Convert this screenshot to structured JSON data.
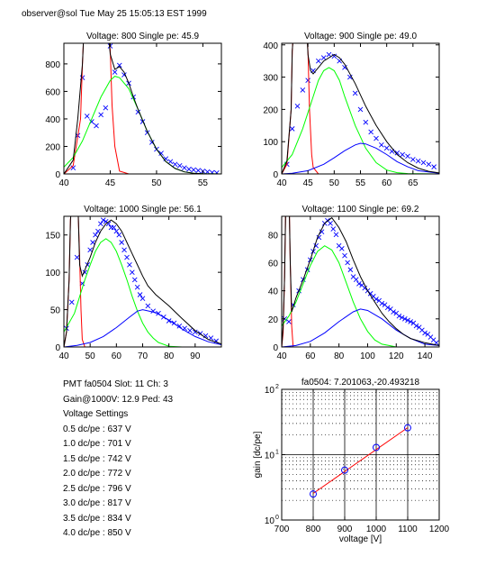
{
  "header": {
    "text": "observer@sol  Tue May 25 15:05:13 EST 1999"
  },
  "info": {
    "pmt_line": "PMT fa0504 Slot: 11 Ch: 3",
    "gain_line": "Gain@1000V: 12.9 Ped: 43",
    "settings_title": "Voltage Settings",
    "settings": [
      "0.5 dc/pe : 637 V",
      "1.0 dc/pe : 701 V",
      "1.5 dc/pe : 742 V",
      "2.0 dc/pe : 772 V",
      "2.5 dc/pe : 796 V",
      "3.0 dc/pe : 817 V",
      "3.5 dc/pe : 834 V",
      "4.0 dc/pe : 850 V"
    ]
  },
  "colors": {
    "data": "#0000ff",
    "red": "#ff0000",
    "green": "#00ff00",
    "blue": "#0000ff",
    "black": "#000000"
  },
  "chart_data": [
    {
      "type": "line",
      "title": "Voltage: 800 Single pe: 45.9",
      "xlim": [
        40,
        57
      ],
      "ylim": [
        0,
        950
      ],
      "xticks": [
        40,
        45,
        50,
        55
      ],
      "yticks": [
        0,
        200,
        400,
        600,
        800
      ],
      "series": [
        {
          "role": "data",
          "marker": "x",
          "x": [
            41,
            41.5,
            42,
            42.5,
            43,
            43.5,
            44,
            44.5,
            45,
            45.5,
            46,
            46.5,
            47,
            47.5,
            48,
            48.5,
            49,
            49.5,
            50,
            50.5,
            51,
            51.5,
            52,
            52.5,
            53,
            53.5,
            54,
            54.5,
            55,
            55.5,
            56,
            56.5
          ],
          "y": [
            45,
            280,
            700,
            420,
            380,
            350,
            430,
            480,
            930,
            740,
            790,
            720,
            660,
            560,
            450,
            380,
            300,
            230,
            180,
            150,
            110,
            90,
            70,
            60,
            45,
            35,
            30,
            25,
            20,
            15,
            10,
            8
          ]
        },
        {
          "role": "pedestal",
          "color": "red",
          "x": [
            40,
            41,
            41.8,
            42,
            42.1,
            42.2,
            44.8,
            44.9,
            45,
            45.2,
            45.5,
            46,
            47
          ],
          "y": [
            0,
            60,
            400,
            800,
            950,
            950,
            950,
            950,
            900,
            500,
            200,
            20,
            0
          ]
        },
        {
          "role": "fit-1pe",
          "color": "green",
          "x": [
            40,
            41,
            42,
            43,
            44,
            45,
            45.5,
            46,
            47,
            48,
            49,
            50,
            51,
            52,
            53,
            54,
            55,
            57
          ],
          "y": [
            50,
            120,
            240,
            400,
            560,
            680,
            710,
            700,
            620,
            470,
            310,
            180,
            90,
            40,
            15,
            5,
            2,
            0
          ]
        },
        {
          "role": "fit-2pe",
          "color": "blue",
          "x": [
            40,
            57
          ],
          "y": [
            0,
            0
          ]
        },
        {
          "role": "fit-total",
          "color": "black",
          "x": [
            40,
            41,
            41.5,
            42,
            42.1,
            42.2,
            44.8,
            44.9,
            45,
            45.5,
            46,
            46.5,
            47,
            47.5,
            48,
            49,
            50,
            51,
            52,
            53,
            54,
            55,
            57
          ],
          "y": [
            0,
            100,
            400,
            800,
            950,
            950,
            950,
            950,
            870,
            760,
            780,
            740,
            660,
            560,
            470,
            310,
            180,
            90,
            40,
            15,
            5,
            2,
            0
          ]
        }
      ]
    },
    {
      "type": "line",
      "title": "Voltage: 900 Single pe: 49.0",
      "xlim": [
        40,
        70
      ],
      "ylim": [
        0,
        405
      ],
      "xticks": [
        40,
        45,
        50,
        55,
        60,
        65
      ],
      "yticks": [
        0,
        100,
        200,
        300,
        400
      ],
      "series": [
        {
          "role": "data",
          "marker": "x",
          "x": [
            41,
            42,
            43,
            44,
            45,
            46,
            47,
            48,
            49,
            50,
            51,
            52,
            53,
            54,
            55,
            56,
            57,
            58,
            59,
            60,
            61,
            62,
            63,
            64,
            65,
            66,
            67,
            68,
            69
          ],
          "y": [
            30,
            140,
            210,
            260,
            290,
            320,
            350,
            360,
            370,
            365,
            350,
            330,
            300,
            250,
            200,
            160,
            130,
            110,
            90,
            80,
            70,
            65,
            60,
            55,
            45,
            40,
            35,
            30,
            22
          ]
        },
        {
          "role": "pedestal",
          "color": "red",
          "x": [
            40,
            41,
            41.8,
            42,
            42.1,
            44.8,
            44.9,
            45,
            45.3,
            45.7,
            46,
            47
          ],
          "y": [
            0,
            30,
            200,
            380,
            405,
            405,
            405,
            380,
            200,
            60,
            20,
            0
          ]
        },
        {
          "role": "fit-1pe",
          "color": "green",
          "x": [
            40,
            42,
            44,
            46,
            47,
            48,
            49,
            50,
            51,
            52,
            54,
            56,
            58,
            60,
            62,
            64,
            70
          ],
          "y": [
            20,
            60,
            140,
            240,
            290,
            320,
            330,
            320,
            290,
            240,
            150,
            80,
            35,
            12,
            4,
            1,
            0
          ]
        },
        {
          "role": "fit-2pe",
          "color": "blue",
          "x": [
            40,
            42,
            45,
            48,
            50,
            52,
            54,
            55,
            56,
            58,
            60,
            62,
            64,
            66,
            70
          ],
          "y": [
            0,
            2,
            10,
            30,
            50,
            72,
            90,
            95,
            93,
            80,
            60,
            38,
            22,
            10,
            2
          ]
        },
        {
          "role": "fit-total",
          "color": "black",
          "x": [
            40,
            41,
            41.8,
            42,
            42.1,
            44.8,
            44.9,
            45,
            45.5,
            46,
            48,
            50,
            51,
            52,
            54,
            56,
            58,
            60,
            62,
            64,
            66,
            68,
            70
          ],
          "y": [
            0,
            40,
            200,
            380,
            405,
            405,
            405,
            370,
            320,
            310,
            350,
            370,
            360,
            340,
            280,
            210,
            150,
            100,
            60,
            35,
            18,
            8,
            3
          ]
        }
      ]
    },
    {
      "type": "line",
      "title": "Voltage: 1000 Single pe: 56.1",
      "xlim": [
        40,
        100
      ],
      "ylim": [
        0,
        175
      ],
      "xticks": [
        40,
        50,
        60,
        70,
        80,
        90
      ],
      "yticks": [
        0,
        50,
        100,
        150
      ],
      "series": [
        {
          "role": "data",
          "marker": "x",
          "x": [
            41,
            43,
            45,
            47,
            48,
            49,
            50,
            51,
            52,
            53,
            54,
            55,
            56,
            57,
            58,
            59,
            60,
            61,
            62,
            63,
            64,
            65,
            66,
            67,
            68,
            69,
            70,
            72,
            74,
            76,
            78,
            80,
            82,
            84,
            86,
            88,
            90,
            92,
            94,
            96,
            98
          ],
          "y": [
            25,
            60,
            120,
            85,
            100,
            110,
            130,
            140,
            150,
            155,
            165,
            170,
            168,
            165,
            160,
            160,
            155,
            150,
            140,
            130,
            120,
            110,
            100,
            90,
            80,
            70,
            65,
            55,
            48,
            45,
            40,
            35,
            32,
            28,
            25,
            22,
            20,
            18,
            15,
            12,
            8
          ]
        },
        {
          "role": "pedestal",
          "color": "red",
          "x": [
            40,
            41,
            42,
            42.5,
            42.6,
            45.4,
            45.5,
            46,
            46.5,
            47,
            48
          ],
          "y": [
            0,
            20,
            90,
            170,
            175,
            175,
            175,
            120,
            50,
            10,
            0
          ]
        },
        {
          "role": "fit-1pe",
          "color": "green",
          "x": [
            40,
            44,
            48,
            50,
            52,
            54,
            56,
            58,
            60,
            62,
            64,
            66,
            68,
            70,
            72,
            74,
            76,
            80,
            85,
            100
          ],
          "y": [
            20,
            45,
            90,
            110,
            128,
            140,
            145,
            140,
            128,
            110,
            90,
            68,
            48,
            32,
            20,
            12,
            6,
            1,
            0,
            0
          ]
        },
        {
          "role": "fit-2pe",
          "color": "blue",
          "x": [
            40,
            45,
            50,
            55,
            60,
            65,
            68,
            70,
            75,
            80,
            85,
            90,
            95,
            100
          ],
          "y": [
            0,
            2,
            6,
            14,
            26,
            40,
            48,
            50,
            46,
            36,
            24,
            14,
            7,
            3
          ]
        },
        {
          "role": "fit-total",
          "color": "black",
          "x": [
            40,
            41,
            42,
            42.5,
            42.6,
            45.4,
            45.5,
            46,
            47,
            50,
            52,
            54,
            56,
            58,
            60,
            62,
            64,
            66,
            68,
            70,
            72,
            75,
            80,
            85,
            90,
            95,
            100
          ],
          "y": [
            0,
            20,
            90,
            170,
            175,
            175,
            175,
            110,
            95,
            120,
            140,
            155,
            165,
            170,
            165,
            155,
            140,
            125,
            110,
            95,
            82,
            70,
            55,
            38,
            22,
            10,
            4
          ]
        }
      ]
    },
    {
      "type": "line",
      "title": "Voltage: 1100 Single pe: 69.2",
      "xlim": [
        40,
        150
      ],
      "ylim": [
        0,
        93
      ],
      "xticks": [
        40,
        60,
        80,
        100,
        120,
        140
      ],
      "yticks": [
        0,
        20,
        40,
        60,
        80
      ],
      "series": [
        {
          "role": "data",
          "marker": "x",
          "x": [
            42,
            45,
            48,
            52,
            55,
            58,
            60,
            62,
            64,
            66,
            68,
            70,
            72,
            74,
            76,
            78,
            80,
            82,
            84,
            86,
            88,
            90,
            92,
            94,
            96,
            98,
            100,
            102,
            104,
            106,
            108,
            110,
            112,
            114,
            116,
            118,
            120,
            122,
            124,
            126,
            128,
            130,
            132,
            134,
            136,
            138,
            140,
            142,
            144,
            146,
            148
          ],
          "y": [
            20,
            18,
            30,
            40,
            48,
            55,
            62,
            68,
            72,
            78,
            82,
            88,
            90,
            88,
            84,
            80,
            72,
            70,
            65,
            60,
            55,
            50,
            48,
            45,
            44,
            42,
            40,
            38,
            36,
            34,
            33,
            31,
            30,
            28,
            27,
            25,
            24,
            22,
            21,
            20,
            19,
            18,
            17,
            15,
            14,
            12,
            10,
            9,
            7,
            5,
            3
          ]
        },
        {
          "role": "pedestal",
          "color": "red",
          "x": [
            40,
            41,
            42,
            42.7,
            42.8,
            45.3,
            45.4,
            46,
            47,
            48
          ],
          "y": [
            0,
            10,
            50,
            93,
            93,
            93,
            93,
            60,
            15,
            0
          ]
        },
        {
          "role": "fit-1pe",
          "color": "green",
          "x": [
            40,
            45,
            50,
            55,
            60,
            65,
            70,
            75,
            80,
            85,
            90,
            95,
            100,
            105,
            110,
            115,
            120,
            130,
            150
          ],
          "y": [
            15,
            22,
            32,
            45,
            58,
            68,
            72,
            69,
            60,
            46,
            32,
            20,
            11,
            5,
            2,
            1,
            0,
            0,
            0
          ]
        },
        {
          "role": "fit-2pe",
          "color": "blue",
          "x": [
            40,
            50,
            60,
            70,
            80,
            90,
            95,
            100,
            110,
            120,
            130,
            140,
            150
          ],
          "y": [
            0,
            1,
            4,
            10,
            18,
            25,
            27,
            26,
            20,
            12,
            6,
            2,
            1
          ]
        },
        {
          "role": "fit-total",
          "color": "black",
          "x": [
            40,
            41,
            42,
            42.7,
            42.8,
            45.3,
            45.4,
            46,
            47,
            50,
            55,
            60,
            65,
            70,
            75,
            80,
            85,
            90,
            95,
            100,
            105,
            110,
            115,
            120,
            125,
            130,
            140,
            150
          ],
          "y": [
            0,
            15,
            50,
            93,
            93,
            93,
            93,
            60,
            25,
            35,
            48,
            62,
            78,
            88,
            92,
            85,
            75,
            62,
            50,
            40,
            32,
            24,
            18,
            13,
            9,
            6,
            3,
            1
          ]
        }
      ]
    },
    {
      "type": "line",
      "title": "fa0504: 7.201063,-20.493218",
      "xlabel": "voltage [V]",
      "ylabel": "gain [dc/pe]",
      "xlim": [
        700,
        1200
      ],
      "ylim": [
        1,
        100
      ],
      "yscale": "log",
      "grid": true,
      "xticks": [
        700,
        800,
        900,
        1000,
        1100,
        1200
      ],
      "yticks": [
        1,
        10,
        100
      ],
      "ytick_labels": [
        "10",
        "10",
        "10"
      ],
      "ytick_exponents": [
        "0",
        "1",
        "2"
      ],
      "series": [
        {
          "role": "measured",
          "marker": "o",
          "color": "blue",
          "x": [
            800,
            900,
            1000,
            1100
          ],
          "y": [
            2.5,
            5.8,
            12.9,
            25.8
          ]
        },
        {
          "role": "fit",
          "color": "red",
          "x": [
            800,
            1100
          ],
          "y": [
            2.55,
            25.9
          ]
        }
      ]
    }
  ]
}
